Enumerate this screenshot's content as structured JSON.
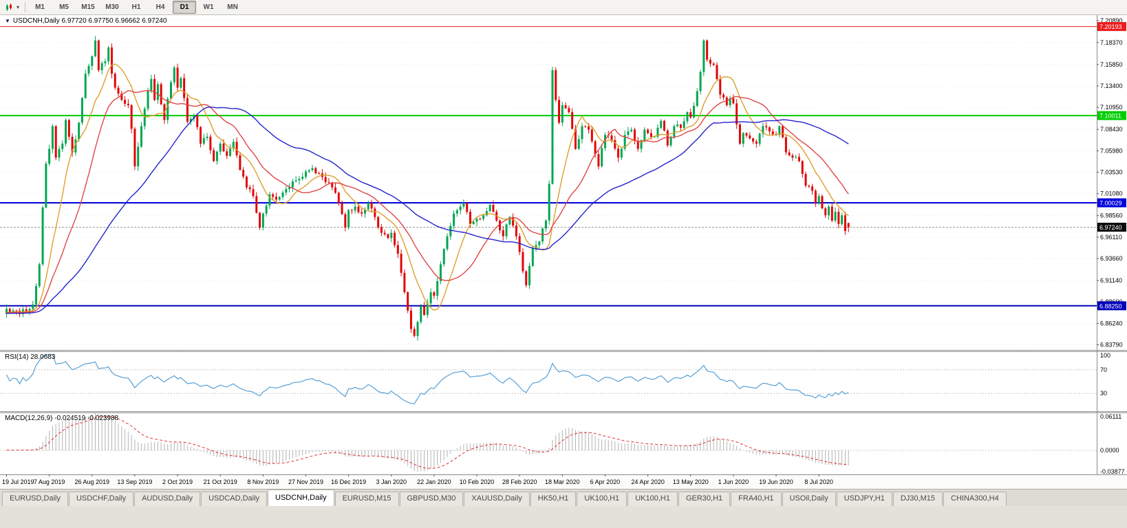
{
  "toolbar": {
    "dropdown_glyph": "▾",
    "timeframes": [
      "M1",
      "M5",
      "M15",
      "M30",
      "H1",
      "H4",
      "D1",
      "W1",
      "MN"
    ],
    "active_timeframe": "D1"
  },
  "chart": {
    "collapse_glyph": "▼",
    "title": "USDCNH,Daily 6.97720 6.97750 6.96662 6.97240",
    "symbol": "USDCNH",
    "period": "Daily",
    "price_axis_labels": [
      "7.20890",
      "7.18370",
      "7.15850",
      "7.13400",
      "7.10950",
      "7.08430",
      "7.05980",
      "7.03530",
      "7.01080",
      "6.98560",
      "6.96110",
      "6.93660",
      "6.91140",
      "6.88690",
      "6.86240",
      "6.83790"
    ],
    "date_labels": [
      "19 Jul 2019",
      "7 Aug 2019",
      "26 Aug 2019",
      "13 Sep 2019",
      "2 Oct 2019",
      "21 Oct 2019",
      "8 Nov 2019",
      "27 Nov 2019",
      "16 Dec 2019",
      "3 Jan 2020",
      "22 Jan 2020",
      "10 Feb 2020",
      "28 Feb 2020",
      "18 Mar 2020",
      "6 Apr 2020",
      "24 Apr 2020",
      "13 May 2020",
      "1 Jun 2020",
      "19 Jun 2020",
      "8 Jul 2020"
    ],
    "levels": [
      {
        "name": "resistance-line",
        "price": 7.20193,
        "label": "7.20193",
        "color": "#ec1c1c",
        "width": 1
      },
      {
        "name": "pivot-line",
        "price": 7.10011,
        "label": "7.10011",
        "color": "#00cc00",
        "width": 2
      },
      {
        "name": "support-line",
        "price": 7.00029,
        "label": "7.00029",
        "color": "#0000dd",
        "width": 2
      },
      {
        "name": "lower-support-line",
        "price": 6.8825,
        "label": "6.88250",
        "color": "#0000bb",
        "width": 2
      }
    ],
    "current_price": {
      "label": "6.97240",
      "value": 6.9724,
      "badge_color": "#0d0d0d"
    },
    "price_range": {
      "top": 7.215,
      "bottom": 6.832
    }
  },
  "rsi": {
    "label": "RSI(14) 28.0683",
    "period": 14,
    "value": 28.0683,
    "line_color": "#569fd6",
    "axis_labels": [
      {
        "text": "100",
        "value": 100
      },
      {
        "text": "70",
        "value": 70
      },
      {
        "text": "30",
        "value": 30
      }
    ]
  },
  "macd": {
    "label": "MACD(12,26,9) -0.024519 -0.023988",
    "macd_value": -0.024519,
    "signal_value": -0.023988,
    "hist_color": "#b2b2b2",
    "signal_color": "#e03030",
    "range": {
      "max": 0.065,
      "min": -0.042
    },
    "axis_labels": [
      {
        "text": "0.06111",
        "value": 0.06111
      },
      {
        "text": "0.0000",
        "value": 0
      },
      {
        "text": "-0.03877",
        "value": -0.03877
      }
    ]
  },
  "chart_data": {
    "type": "candlestick",
    "symbol": "USDCNH",
    "timeframe": "Daily",
    "bars": 257,
    "label_every": 13,
    "up_color": "#00a651",
    "down_color": "#e00505",
    "last_bar": {
      "open": 6.9772,
      "high": 6.9775,
      "low": 6.96662,
      "close": 6.9724
    },
    "moving_averages": [
      {
        "period": 10,
        "color": "#dd9f2c"
      },
      {
        "period": 20,
        "color": "#e04545"
      },
      {
        "period": 50,
        "color": "#2323cc"
      }
    ],
    "close_anchors": [
      [
        0,
        6.879
      ],
      [
        4,
        6.873
      ],
      [
        8,
        6.884
      ],
      [
        10,
        6.93
      ],
      [
        11,
        6.995
      ],
      [
        12,
        7.045
      ],
      [
        13,
        7.062
      ],
      [
        14,
        7.088
      ],
      [
        15,
        7.052
      ],
      [
        17,
        7.068
      ],
      [
        18,
        7.095
      ],
      [
        20,
        7.058
      ],
      [
        22,
        7.092
      ],
      [
        24,
        7.148
      ],
      [
        26,
        7.168
      ],
      [
        27,
        7.186
      ],
      [
        28,
        7.152
      ],
      [
        30,
        7.162
      ],
      [
        31,
        7.178
      ],
      [
        32,
        7.148
      ],
      [
        33,
        7.132
      ],
      [
        35,
        7.118
      ],
      [
        37,
        7.112
      ],
      [
        38,
        7.085
      ],
      [
        39,
        7.042
      ],
      [
        41,
        7.088
      ],
      [
        43,
        7.128
      ],
      [
        44,
        7.142
      ],
      [
        45,
        7.118
      ],
      [
        46,
        7.136
      ],
      [
        48,
        7.095
      ],
      [
        50,
        7.138
      ],
      [
        51,
        7.155
      ],
      [
        52,
        7.132
      ],
      [
        53,
        7.143
      ],
      [
        55,
        7.093
      ],
      [
        57,
        7.1
      ],
      [
        59,
        7.068
      ],
      [
        61,
        7.076
      ],
      [
        63,
        7.048
      ],
      [
        65,
        7.068
      ],
      [
        67,
        7.054
      ],
      [
        69,
        7.07
      ],
      [
        71,
        7.038
      ],
      [
        73,
        7.018
      ],
      [
        75,
        7.008
      ],
      [
        77,
        6.972
      ],
      [
        78,
        6.988
      ],
      [
        80,
        7.01
      ],
      [
        82,
        7.004
      ],
      [
        84,
        7.012
      ],
      [
        86,
        7.018
      ],
      [
        88,
        7.026
      ],
      [
        90,
        7.03
      ],
      [
        91,
        7.036
      ],
      [
        93,
        7.04
      ],
      [
        95,
        7.034
      ],
      [
        97,
        7.024
      ],
      [
        99,
        7.018
      ],
      [
        101,
        7.0
      ],
      [
        103,
        6.972
      ],
      [
        104,
        6.992
      ],
      [
        106,
        6.996
      ],
      [
        108,
        6.988
      ],
      [
        110,
        7.0
      ],
      [
        112,
        6.984
      ],
      [
        114,
        6.966
      ],
      [
        116,
        6.96
      ],
      [
        117,
        6.966
      ],
      [
        119,
        6.942
      ],
      [
        121,
        6.898
      ],
      [
        123,
        6.856
      ],
      [
        124,
        6.848
      ],
      [
        125,
        6.864
      ],
      [
        126,
        6.882
      ],
      [
        127,
        6.872
      ],
      [
        129,
        6.898
      ],
      [
        130,
        6.894
      ],
      [
        132,
        6.93
      ],
      [
        134,
        6.962
      ],
      [
        136,
        6.988
      ],
      [
        138,
        6.996
      ],
      [
        139,
        7.0
      ],
      [
        141,
        6.976
      ],
      [
        143,
        6.982
      ],
      [
        145,
        6.986
      ],
      [
        147,
        6.998
      ],
      [
        149,
        6.98
      ],
      [
        151,
        6.962
      ],
      [
        153,
        6.984
      ],
      [
        155,
        6.962
      ],
      [
        156,
        6.944
      ],
      [
        157,
        6.922
      ],
      [
        158,
        6.906
      ],
      [
        160,
        6.948
      ],
      [
        162,
        6.956
      ],
      [
        164,
        6.98
      ],
      [
        165,
        7.022
      ],
      [
        166,
        7.152
      ],
      [
        167,
        7.118
      ],
      [
        168,
        7.092
      ],
      [
        169,
        7.112
      ],
      [
        171,
        7.104
      ],
      [
        173,
        7.062
      ],
      [
        175,
        7.088
      ],
      [
        177,
        7.084
      ],
      [
        179,
        7.056
      ],
      [
        180,
        7.042
      ],
      [
        182,
        7.078
      ],
      [
        184,
        7.072
      ],
      [
        186,
        7.052
      ],
      [
        188,
        7.078
      ],
      [
        190,
        7.084
      ],
      [
        192,
        7.062
      ],
      [
        194,
        7.084
      ],
      [
        195,
        7.08
      ],
      [
        197,
        7.076
      ],
      [
        199,
        7.094
      ],
      [
        201,
        7.066
      ],
      [
        203,
        7.088
      ],
      [
        205,
        7.086
      ],
      [
        207,
        7.104
      ],
      [
        208,
        7.098
      ],
      [
        210,
        7.128
      ],
      [
        211,
        7.15
      ],
      [
        212,
        7.186
      ],
      [
        213,
        7.164
      ],
      [
        215,
        7.158
      ],
      [
        217,
        7.124
      ],
      [
        219,
        7.112
      ],
      [
        220,
        7.12
      ],
      [
        221,
        7.114
      ],
      [
        222,
        7.09
      ],
      [
        223,
        7.068
      ],
      [
        224,
        7.08
      ],
      [
        226,
        7.074
      ],
      [
        228,
        7.068
      ],
      [
        230,
        7.088
      ],
      [
        232,
        7.082
      ],
      [
        234,
        7.078
      ],
      [
        235,
        7.088
      ],
      [
        237,
        7.058
      ],
      [
        239,
        7.052
      ],
      [
        241,
        7.048
      ],
      [
        243,
        7.02
      ],
      [
        245,
        7.014
      ],
      [
        246,
        7.0
      ],
      [
        247,
        7.008
      ],
      [
        248,
        6.994
      ],
      [
        249,
        6.986
      ],
      [
        250,
        6.996
      ],
      [
        251,
        6.98
      ],
      [
        252,
        6.99
      ],
      [
        253,
        6.976
      ],
      [
        254,
        6.986
      ],
      [
        255,
        6.968
      ],
      [
        256,
        6.9724
      ]
    ]
  },
  "tabs": {
    "items": [
      "EURUSD,Daily",
      "USDCHF,Daily",
      "AUDUSD,Daily",
      "USDCAD,Daily",
      "USDCNH,Daily",
      "EURUSD,M15",
      "GBPUSD,M30",
      "XAUUSD,Daily",
      "HK50,H1",
      "UK100,H1",
      "UK100,H1",
      "GER30,H1",
      "FRA40,H1",
      "USOil,Daily",
      "USDJPY,H1",
      "DJ30,M15",
      "CHINA300,H4"
    ],
    "active_index": 4
  }
}
